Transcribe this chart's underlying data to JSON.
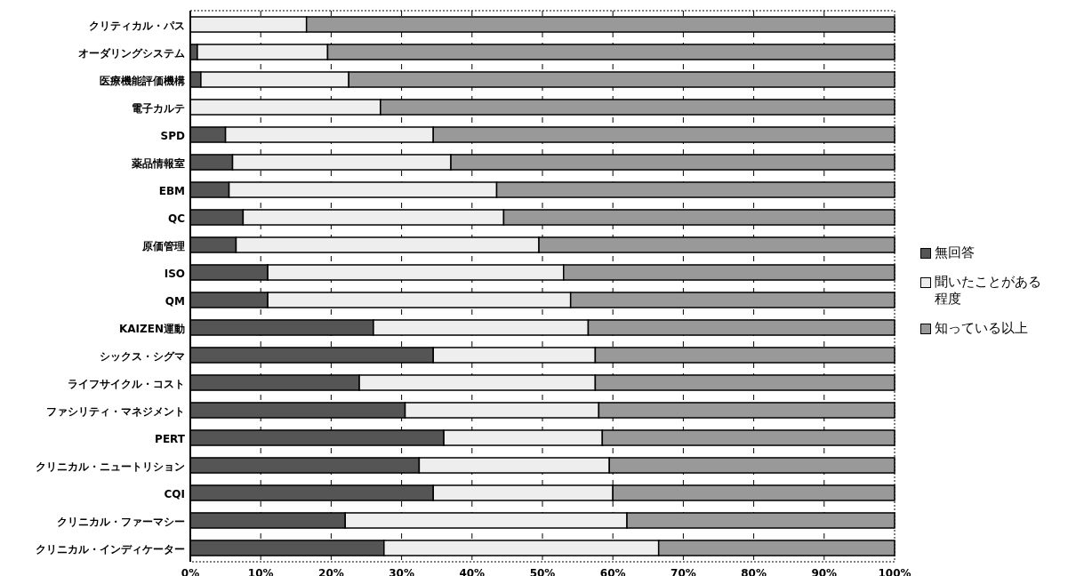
{
  "chart_data": {
    "type": "bar",
    "orientation": "horizontal",
    "stacked": true,
    "grid": "x",
    "legend": "right",
    "categories": [
      "クリティカル・パス",
      "オーダリングシステム",
      "医療機能評価機構",
      "電子カルテ",
      "SPD",
      "薬品情報室",
      "EBM",
      "QC",
      "原価管理",
      "ISO",
      "QM",
      "KAIZEN運動",
      "シックス・シグマ",
      "ライフサイクル・コスト",
      "ファシリティ・マネジメント",
      "PERT",
      "クリニカル・ニュートリション",
      "CQI",
      "クリニカル・ファーマシー",
      "クリニカル・インディケーター"
    ],
    "xlim": [
      0,
      100
    ],
    "xticks": [
      {
        "value": 0,
        "label": "0%"
      },
      {
        "value": 10,
        "label": "10%"
      },
      {
        "value": 20,
        "label": "20%"
      },
      {
        "value": 30,
        "label": "30%"
      },
      {
        "value": 40,
        "label": "40%"
      },
      {
        "value": 50,
        "label": "50%"
      },
      {
        "value": 60,
        "label": "60%"
      },
      {
        "value": 70,
        "label": "70%"
      },
      {
        "value": 80,
        "label": "80%"
      },
      {
        "value": 90,
        "label": "90%"
      },
      {
        "value": 100,
        "label": "100%"
      }
    ],
    "series": [
      {
        "name": "無回答",
        "color": "#555555",
        "values": [
          null,
          1,
          1.5,
          null,
          5,
          6,
          5.5,
          7.5,
          6.5,
          11,
          11,
          26,
          34.5,
          24,
          30.5,
          36,
          32.5,
          34.5,
          22,
          27.5
        ]
      },
      {
        "name": "聞いたことがある程度",
        "color": "#eeeeee",
        "values": [
          16.5,
          18.5,
          21,
          27,
          29.5,
          31,
          38,
          37,
          43,
          42,
          43,
          30.5,
          23,
          33.5,
          27.5,
          22.5,
          27,
          25.5,
          40,
          39
        ]
      },
      {
        "name": "知っている以上",
        "color": "#999999",
        "values": [
          83.5,
          80.5,
          77.5,
          73,
          65.5,
          63,
          56.5,
          55.5,
          50.5,
          47,
          46,
          43.5,
          42.5,
          42.5,
          42,
          41.5,
          40.5,
          40,
          38,
          33.5
        ]
      }
    ]
  }
}
